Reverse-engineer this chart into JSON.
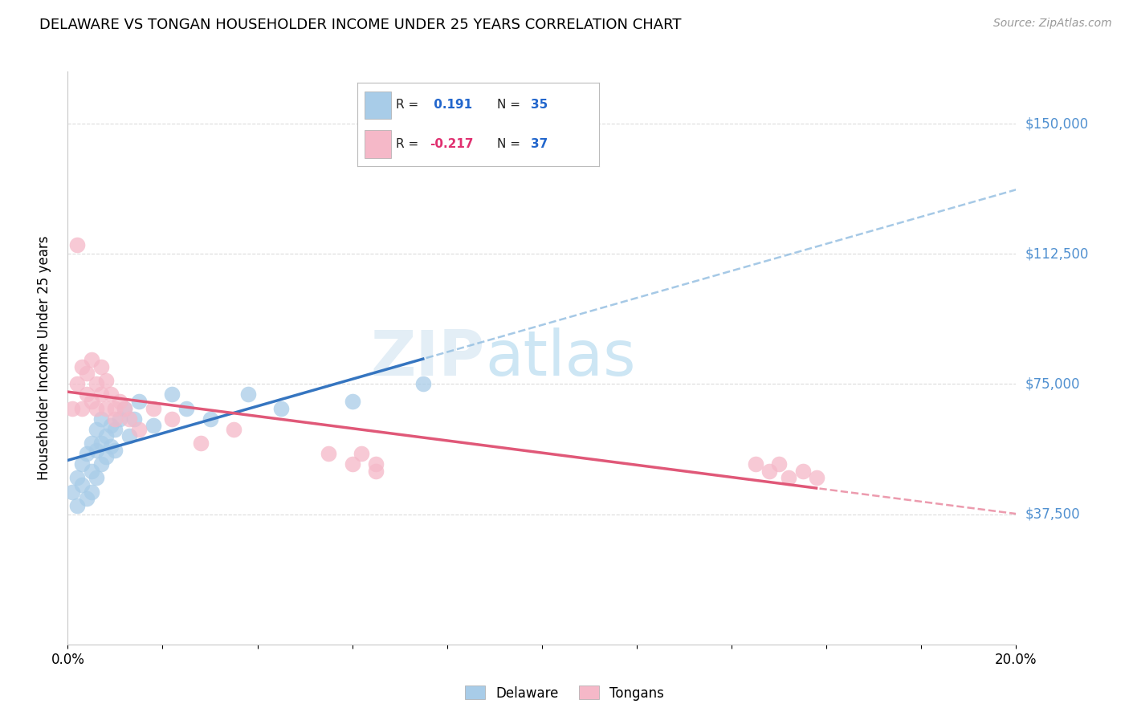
{
  "title": "DELAWARE VS TONGAN HOUSEHOLDER INCOME UNDER 25 YEARS CORRELATION CHART",
  "source": "Source: ZipAtlas.com",
  "ylabel": "Householder Income Under 25 years",
  "ytick_labels": [
    "$37,500",
    "$75,000",
    "$112,500",
    "$150,000"
  ],
  "ytick_values": [
    37500,
    75000,
    112500,
    150000
  ],
  "ymin": 0,
  "ymax": 165000,
  "xmin": 0.0,
  "xmax": 0.2,
  "legend_blue_r": "0.191",
  "legend_blue_n": "35",
  "legend_pink_r": "-0.217",
  "legend_pink_n": "37",
  "blue_scatter_color": "#a8cce8",
  "pink_scatter_color": "#f5b8c8",
  "blue_line_color": "#3575c0",
  "pink_line_color": "#e05878",
  "blue_dash_color": "#90bce0",
  "watermark_zip_color": "#cce0f0",
  "watermark_atlas_color": "#90c8e8",
  "background_color": "#ffffff",
  "grid_color": "#cccccc",
  "right_label_color": "#5090d0",
  "delaware_x": [
    0.001,
    0.002,
    0.002,
    0.003,
    0.003,
    0.004,
    0.004,
    0.005,
    0.005,
    0.005,
    0.006,
    0.006,
    0.006,
    0.007,
    0.007,
    0.007,
    0.008,
    0.008,
    0.009,
    0.009,
    0.01,
    0.01,
    0.011,
    0.012,
    0.013,
    0.014,
    0.015,
    0.018,
    0.022,
    0.025,
    0.03,
    0.038,
    0.045,
    0.06,
    0.075
  ],
  "delaware_y": [
    44000,
    40000,
    48000,
    52000,
    46000,
    55000,
    42000,
    58000,
    50000,
    44000,
    62000,
    56000,
    48000,
    65000,
    58000,
    52000,
    60000,
    54000,
    63000,
    57000,
    62000,
    56000,
    65000,
    68000,
    60000,
    65000,
    70000,
    63000,
    72000,
    68000,
    65000,
    72000,
    68000,
    70000,
    75000
  ],
  "tongan_x": [
    0.001,
    0.002,
    0.002,
    0.003,
    0.003,
    0.004,
    0.004,
    0.005,
    0.005,
    0.006,
    0.006,
    0.007,
    0.007,
    0.008,
    0.008,
    0.009,
    0.01,
    0.01,
    0.011,
    0.012,
    0.013,
    0.015,
    0.018,
    0.022,
    0.028,
    0.035,
    0.055,
    0.06,
    0.062,
    0.065,
    0.065,
    0.145,
    0.148,
    0.15,
    0.152,
    0.155,
    0.158
  ],
  "tongan_y": [
    68000,
    115000,
    75000,
    80000,
    68000,
    72000,
    78000,
    82000,
    70000,
    75000,
    68000,
    80000,
    72000,
    68000,
    76000,
    72000,
    68000,
    65000,
    70000,
    68000,
    65000,
    62000,
    68000,
    65000,
    58000,
    62000,
    55000,
    52000,
    55000,
    52000,
    50000,
    52000,
    50000,
    52000,
    48000,
    50000,
    48000
  ]
}
